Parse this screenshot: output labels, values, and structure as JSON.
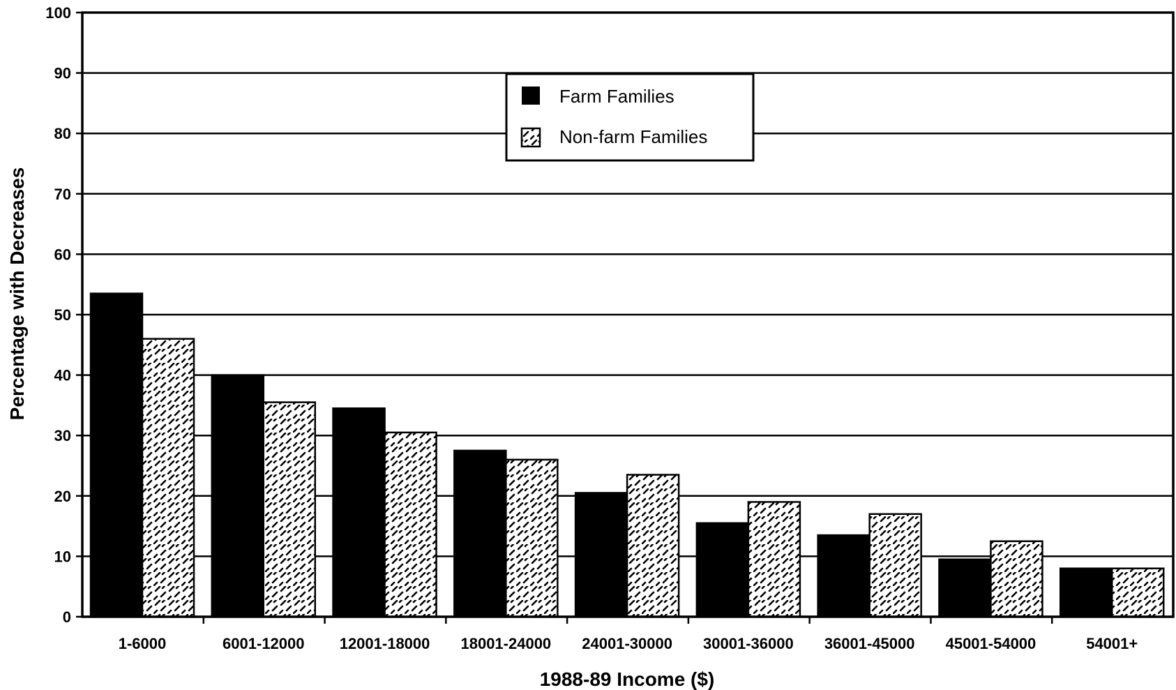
{
  "chart_data": {
    "type": "bar",
    "title": "",
    "xlabel": "1988-89 Income ($)",
    "ylabel": "Percentage with Decreases",
    "ylim": [
      0,
      100
    ],
    "yticks": [
      0,
      10,
      20,
      30,
      40,
      50,
      60,
      70,
      80,
      90,
      100
    ],
    "grid": true,
    "legend_position": "top-center",
    "categories": [
      "1-6000",
      "6001-12000",
      "12001-18000",
      "18001-24000",
      "24001-30000",
      "30001-36000",
      "36001-45000",
      "45001-54000",
      "54001+"
    ],
    "series": [
      {
        "name": "Farm Families",
        "color": "#000000",
        "pattern": "solid",
        "values": [
          53.5,
          40,
          34.5,
          27.5,
          20.5,
          15.5,
          13.5,
          9.5,
          8
        ]
      },
      {
        "name": "Non-farm Families",
        "color": "#ffffff",
        "pattern": "dashed-hatch",
        "values": [
          46,
          35.5,
          30.5,
          26,
          23.5,
          19,
          17,
          12.5,
          8
        ]
      }
    ]
  }
}
